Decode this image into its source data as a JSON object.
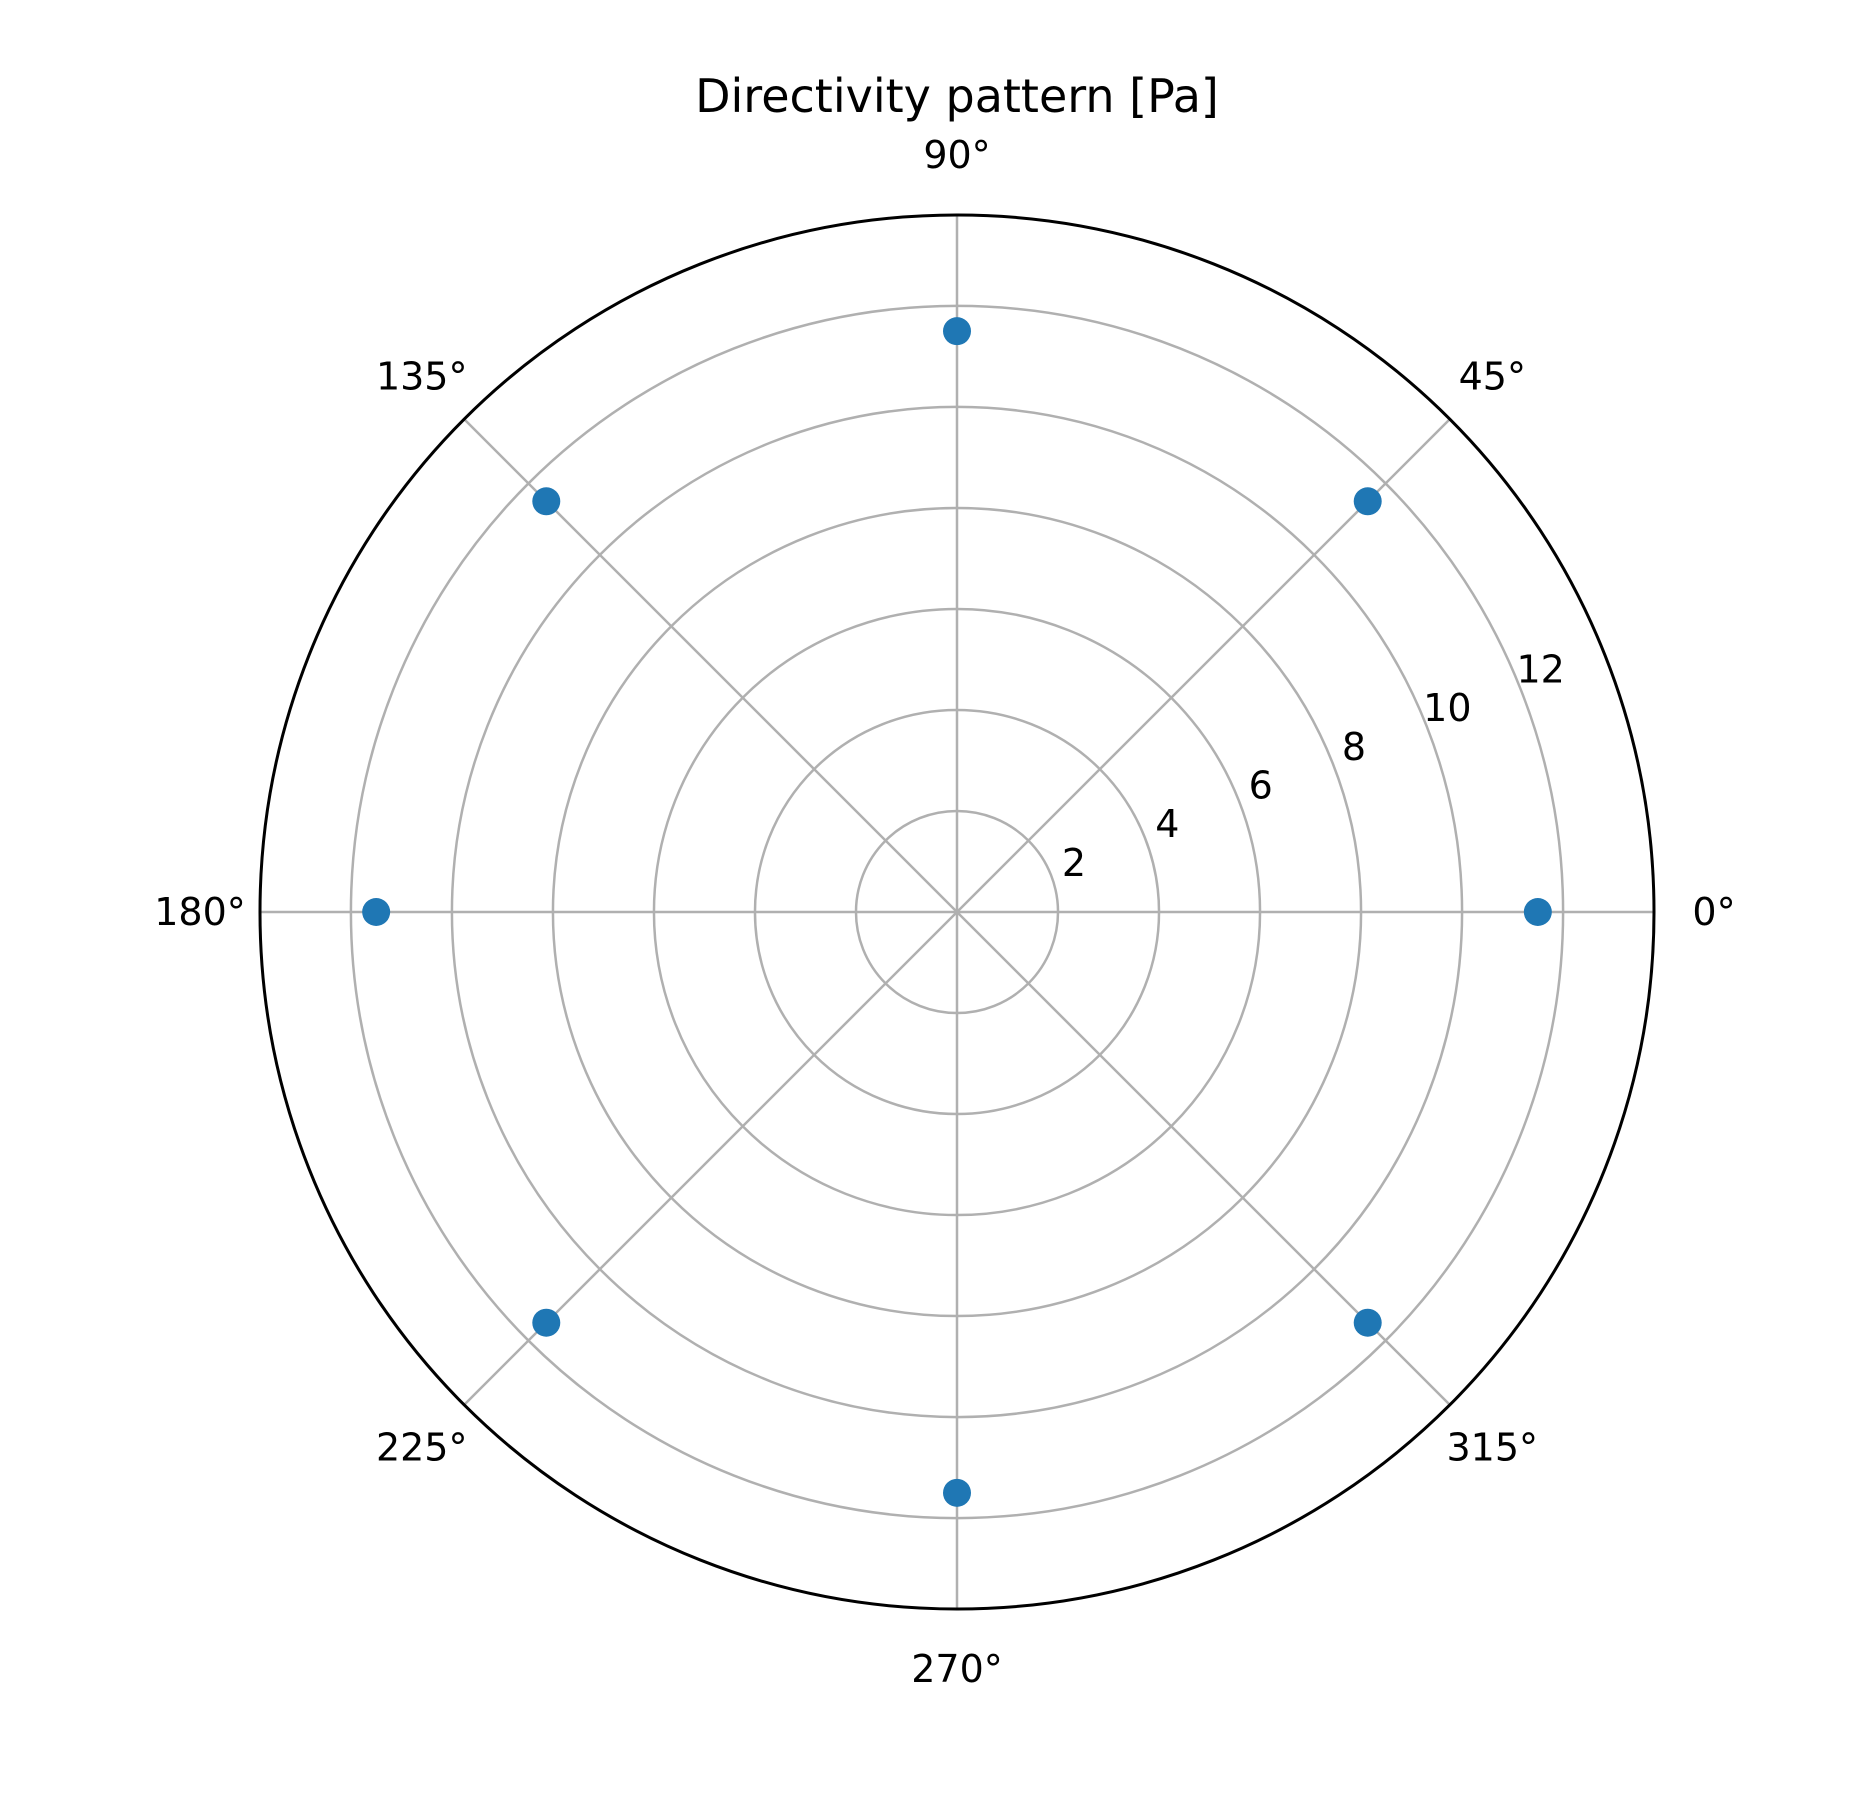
{
  "chart_data": {
    "type": "scatter",
    "projection": "polar",
    "title": "Directivity pattern [Pa]",
    "theta_unit": "degrees",
    "r_lim": [
      0,
      13.8
    ],
    "r_ticks": [
      2,
      4,
      6,
      8,
      10,
      12
    ],
    "r_tick_labels": [
      "2",
      "4",
      "6",
      "8",
      "10",
      "12"
    ],
    "theta_ticks": [
      0,
      45,
      90,
      135,
      180,
      225,
      270,
      315
    ],
    "theta_tick_labels": [
      "0°",
      "45°",
      "90°",
      "135°",
      "180°",
      "225°",
      "270°",
      "315°"
    ],
    "grid": true,
    "marker_color": "#1f77b4",
    "points": [
      {
        "theta": 0,
        "r": 11.5
      },
      {
        "theta": 45,
        "r": 11.5
      },
      {
        "theta": 90,
        "r": 11.5
      },
      {
        "theta": 135,
        "r": 11.5
      },
      {
        "theta": 180,
        "r": 11.5
      },
      {
        "theta": 225,
        "r": 11.5
      },
      {
        "theta": 270,
        "r": 11.5
      },
      {
        "theta": 315,
        "r": 11.5
      }
    ]
  }
}
